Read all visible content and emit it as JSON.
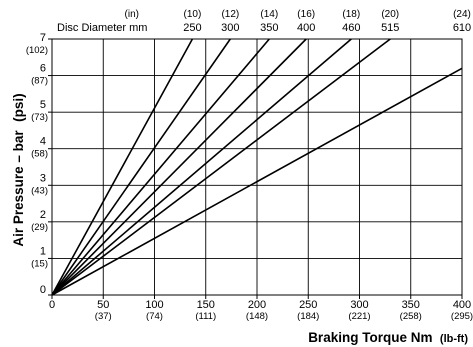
{
  "chart_data": {
    "type": "line",
    "title": "",
    "xlabel": "Braking Torque Nm",
    "xlabel_unit": "(lb-ft)",
    "ylabel": "Air Pressure – bar",
    "ylabel_unit": "(psi)",
    "xlim": [
      0,
      400
    ],
    "ylim": [
      0,
      7
    ],
    "grid": true,
    "x_ticks": [
      {
        "value": 0,
        "label": "0",
        "sub": ""
      },
      {
        "value": 50,
        "label": "50",
        "sub": "(37)"
      },
      {
        "value": 100,
        "label": "100",
        "sub": "(74)"
      },
      {
        "value": 150,
        "label": "150",
        "sub": "(111)"
      },
      {
        "value": 200,
        "label": "200",
        "sub": "(148)"
      },
      {
        "value": 250,
        "label": "250",
        "sub": "(184)"
      },
      {
        "value": 300,
        "label": "300",
        "sub": "(221)"
      },
      {
        "value": 350,
        "label": "350",
        "sub": "(258)"
      },
      {
        "value": 400,
        "label": "400",
        "sub": "(295)"
      }
    ],
    "y_ticks": [
      {
        "value": 0,
        "label": "0",
        "sub": ""
      },
      {
        "value": 1,
        "label": "1",
        "sub": "(15)"
      },
      {
        "value": 2,
        "label": "2",
        "sub": "(29)"
      },
      {
        "value": 3,
        "label": "3",
        "sub": "(43)"
      },
      {
        "value": 4,
        "label": "4",
        "sub": "(58)"
      },
      {
        "value": 5,
        "label": "5",
        "sub": "(73)"
      },
      {
        "value": 6,
        "label": "6",
        "sub": "(87)"
      },
      {
        "value": 7,
        "label": "7",
        "sub": "(102)"
      }
    ],
    "disc_header": {
      "inch_label": "(in)",
      "mm_label": "Disc Diameter mm"
    },
    "series": [
      {
        "disc_mm": "250",
        "disc_in": "(10)",
        "x": [
          0,
          137
        ],
        "y": [
          0,
          7
        ]
      },
      {
        "disc_mm": "300",
        "disc_in": "(12)",
        "x": [
          0,
          174
        ],
        "y": [
          0,
          7
        ]
      },
      {
        "disc_mm": "350",
        "disc_in": "(14)",
        "x": [
          0,
          212
        ],
        "y": [
          0,
          7
        ]
      },
      {
        "disc_mm": "400",
        "disc_in": "(16)",
        "x": [
          0,
          248
        ],
        "y": [
          0,
          7
        ]
      },
      {
        "disc_mm": "460",
        "disc_in": "(18)",
        "x": [
          0,
          292
        ],
        "y": [
          0,
          7
        ]
      },
      {
        "disc_mm": "515",
        "disc_in": "(20)",
        "x": [
          0,
          330
        ],
        "y": [
          0,
          7
        ]
      },
      {
        "disc_mm": "610",
        "disc_in": "(24)",
        "x": [
          0,
          400
        ],
        "y": [
          0,
          6.2
        ]
      }
    ]
  }
}
